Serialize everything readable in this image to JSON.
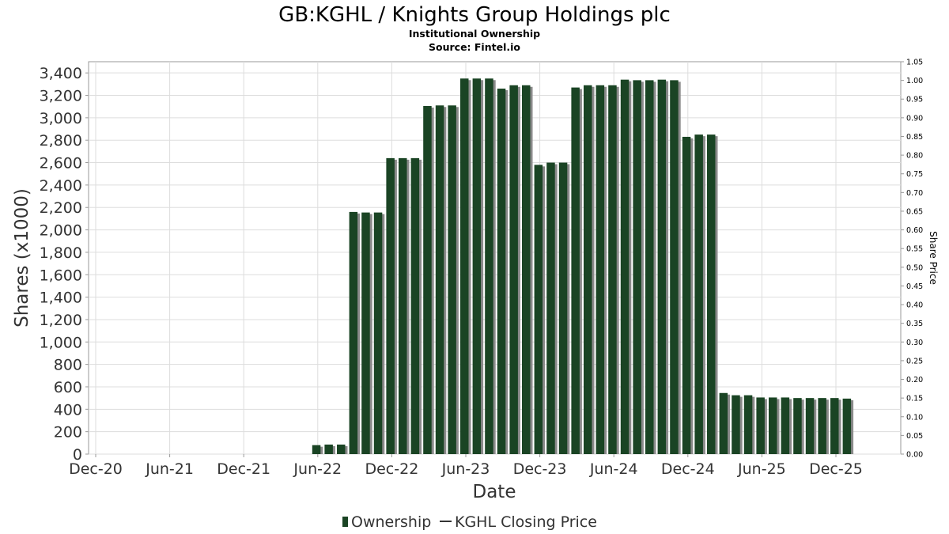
{
  "chart_data": {
    "type": "bar",
    "title": "GB:KGHL / Knights Group Holdings plc",
    "subtitle": "Institutional Ownership",
    "source": "Source: Fintel.io",
    "xlabel": "Date",
    "ylabel": "Shares (x1000)",
    "y2label": "Share Price",
    "ylim": [
      0,
      3500
    ],
    "y2lim": [
      0,
      1.05
    ],
    "yticks": [
      0,
      200,
      400,
      600,
      800,
      1000,
      1200,
      1400,
      1600,
      1800,
      2000,
      2200,
      2400,
      2600,
      2800,
      3000,
      3200,
      3400
    ],
    "ytick_labels": [
      "0",
      "200",
      "400",
      "600",
      "800",
      "1,000",
      "1,200",
      "1,400",
      "1,600",
      "1,800",
      "2,000",
      "2,200",
      "2,400",
      "2,600",
      "2,800",
      "3,000",
      "3,200",
      "3,400"
    ],
    "y2ticks": [
      0,
      0.05,
      0.1,
      0.15,
      0.2,
      0.25,
      0.3,
      0.35,
      0.4,
      0.45,
      0.5,
      0.55,
      0.6,
      0.65,
      0.7,
      0.75,
      0.8,
      0.85,
      0.9,
      0.95,
      1.0,
      1.05
    ],
    "y2tick_labels": [
      "0.00",
      "0.05",
      "0.10",
      "0.15",
      "0.20",
      "0.25",
      "0.30",
      "0.35",
      "0.40",
      "0.45",
      "0.50",
      "0.55",
      "0.60",
      "0.65",
      "0.70",
      "0.75",
      "0.80",
      "0.85",
      "0.90",
      "0.95",
      "1.00",
      "1.05"
    ],
    "xlim_months": [
      -1,
      64
    ],
    "x_ticks": [
      {
        "label": "Dec-20",
        "month": 0
      },
      {
        "label": "Jun-21",
        "month": 6
      },
      {
        "label": "Dec-21",
        "month": 12
      },
      {
        "label": "Jun-22",
        "month": 18
      },
      {
        "label": "Dec-22",
        "month": 24
      },
      {
        "label": "Jun-23",
        "month": 30
      },
      {
        "label": "Dec-23",
        "month": 36
      },
      {
        "label": "Jun-24",
        "month": 42
      },
      {
        "label": "Dec-24",
        "month": 48
      },
      {
        "label": "Jun-25",
        "month": 54
      },
      {
        "label": "Dec-25",
        "month": 60
      }
    ],
    "series": [
      {
        "name": "Ownership",
        "color": "#1a4424",
        "shadow_color": "#8a8a8a",
        "x_months": [
          18,
          19,
          20,
          21,
          22,
          23,
          24,
          25,
          26,
          27,
          28,
          29,
          30,
          31,
          32,
          33,
          34,
          35,
          36,
          37,
          38,
          39,
          40,
          41,
          42,
          43,
          44,
          45,
          46,
          47,
          48,
          49,
          50,
          51,
          52,
          53,
          54,
          55,
          56,
          57,
          58,
          59,
          60,
          61
        ],
        "values": [
          80,
          85,
          85,
          2160,
          2155,
          2155,
          2640,
          2640,
          2640,
          3105,
          3110,
          3110,
          3350,
          3350,
          3350,
          3260,
          3290,
          3290,
          2580,
          2600,
          2600,
          3270,
          3290,
          3290,
          3290,
          3340,
          3335,
          3335,
          3340,
          3335,
          2830,
          2850,
          2850,
          545,
          525,
          525,
          505,
          505,
          505,
          500,
          500,
          500,
          500,
          495
        ]
      },
      {
        "name": "KGHL Closing Price",
        "color": "#333333",
        "values": []
      }
    ],
    "legend": [
      {
        "label": "Ownership",
        "symbol": "bar"
      },
      {
        "label": "KGHL Closing Price",
        "symbol": "line"
      }
    ]
  }
}
